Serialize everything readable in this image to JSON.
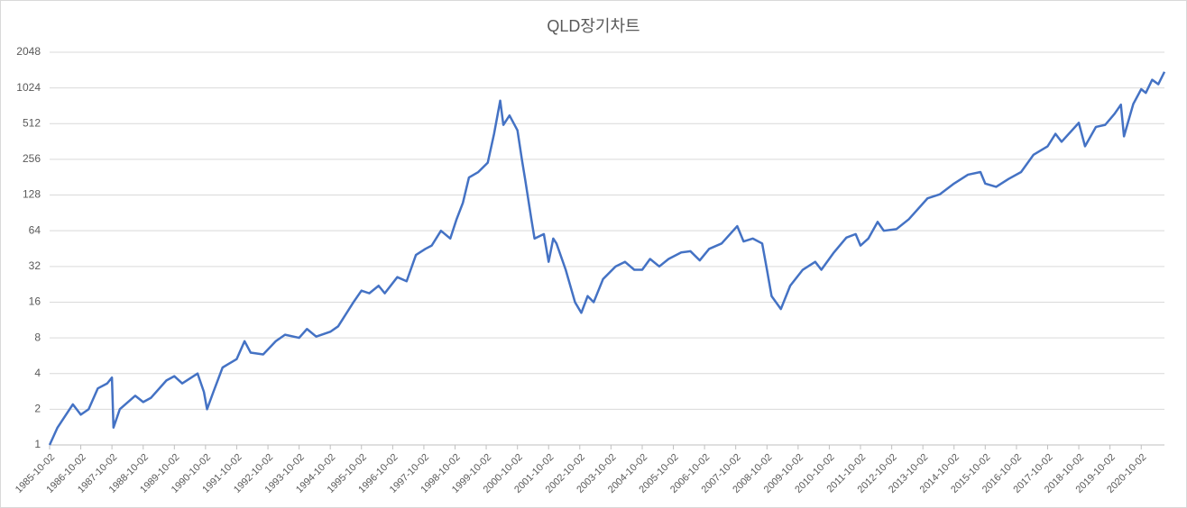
{
  "chart_data": {
    "type": "line",
    "title": "QLD장기차트",
    "log_scale": true,
    "grid": true,
    "ylim": [
      1,
      2048
    ],
    "yticks": [
      1,
      2,
      4,
      8,
      16,
      32,
      64,
      128,
      256,
      512,
      1024,
      2048
    ],
    "xlim": [
      "1985-10-02",
      "2021-07-01"
    ],
    "xticks": [
      "1985-10-02",
      "1986-10-02",
      "1987-10-02",
      "1988-10-02",
      "1989-10-02",
      "1990-10-02",
      "1991-10-02",
      "1992-10-02",
      "1993-10-02",
      "1994-10-02",
      "1995-10-02",
      "1996-10-02",
      "1997-10-02",
      "1998-10-02",
      "1999-10-02",
      "2000-10-02",
      "2001-10-02",
      "2002-10-02",
      "2003-10-02",
      "2004-10-02",
      "2005-10-02",
      "2006-10-02",
      "2007-10-02",
      "2008-10-02",
      "2009-10-02",
      "2010-10-02",
      "2011-10-02",
      "2012-10-02",
      "2013-10-02",
      "2014-10-02",
      "2015-10-02",
      "2016-10-02",
      "2017-10-02",
      "2018-10-02",
      "2019-10-02",
      "2020-10-02"
    ],
    "x": [
      "1985-10-02",
      "1986-01-02",
      "1986-07-01",
      "1986-10-02",
      "1987-01-02",
      "1987-04-20",
      "1987-08-07",
      "1987-10-02",
      "1987-10-20",
      "1988-01-02",
      "1988-07-01",
      "1988-10-02",
      "1989-01-02",
      "1989-07-01",
      "1989-10-02",
      "1990-01-02",
      "1990-07-01",
      "1990-09-13",
      "1990-10-20",
      "1991-01-02",
      "1991-04-20",
      "1991-10-02",
      "1992-01-02",
      "1992-03-14",
      "1992-08-07",
      "1993-01-02",
      "1993-04-20",
      "1993-10-02",
      "1994-01-02",
      "1994-04-20",
      "1994-10-02",
      "1995-01-02",
      "1995-07-01",
      "1995-10-02",
      "1996-01-02",
      "1996-04-20",
      "1996-07-01",
      "1996-11-25",
      "1997-03-14",
      "1997-07-01",
      "1997-10-20",
      "1998-01-02",
      "1998-04-20",
      "1998-08-07",
      "1998-10-20",
      "1999-01-02",
      "1999-03-14",
      "1999-07-01",
      "1999-10-20",
      "2000-01-02",
      "2000-03-14",
      "2000-04-20",
      "2000-07-01",
      "2000-10-02",
      "2000-11-25",
      "2001-01-02",
      "2001-03-14",
      "2001-04-20",
      "2001-08-07",
      "2001-10-02",
      "2001-11-25",
      "2002-01-02",
      "2002-04-20",
      "2002-08-07",
      "2002-10-20",
      "2003-01-02",
      "2003-03-14",
      "2003-07-01",
      "2003-11-25",
      "2004-03-14",
      "2004-07-01",
      "2004-10-02",
      "2005-01-02",
      "2005-04-20",
      "2005-08-07",
      "2006-01-02",
      "2006-04-20",
      "2006-08-07",
      "2006-11-25",
      "2007-04-20",
      "2007-10-20",
      "2008-01-02",
      "2008-04-20",
      "2008-08-07",
      "2008-10-02",
      "2008-11-25",
      "2009-03-14",
      "2009-07-01",
      "2009-11-25",
      "2010-04-20",
      "2010-07-01",
      "2010-11-25",
      "2011-04-20",
      "2011-08-07",
      "2011-10-02",
      "2012-01-02",
      "2012-04-20",
      "2012-07-01",
      "2012-11-25",
      "2013-04-20",
      "2013-11-25",
      "2014-04-20",
      "2014-10-02",
      "2015-03-14",
      "2015-08-07",
      "2015-10-02",
      "2016-02-07",
      "2016-07-01",
      "2016-11-25",
      "2017-04-20",
      "2017-10-02",
      "2018-01-02",
      "2018-03-14",
      "2018-10-02",
      "2018-12-14",
      "2019-04-20",
      "2019-08-07",
      "2019-11-25",
      "2020-02-07",
      "2020-03-14",
      "2020-07-01",
      "2020-10-02",
      "2020-11-25",
      "2021-02-07",
      "2021-04-20",
      "2021-07-01"
    ],
    "series": [
      {
        "color": "#4472c4",
        "values": [
          1,
          1.4,
          2.2,
          1.8,
          2.0,
          3.0,
          3.3,
          3.7,
          1.4,
          2.0,
          2.6,
          2.3,
          2.5,
          3.5,
          3.8,
          3.3,
          4.0,
          2.8,
          2.0,
          2.8,
          4.5,
          5.3,
          7.5,
          6.0,
          5.8,
          7.5,
          8.5,
          8.0,
          9.5,
          8.2,
          9.0,
          10,
          16,
          20,
          19,
          22,
          19,
          26,
          24,
          40,
          45,
          48,
          64,
          55,
          80,
          110,
          180,
          200,
          240,
          420,
          800,
          500,
          600,
          450,
          250,
          170,
          80,
          55,
          60,
          35,
          55,
          50,
          30,
          16,
          13,
          18,
          16,
          25,
          32,
          35,
          30,
          30,
          37,
          32,
          37,
          42,
          43,
          36,
          45,
          50,
          70,
          52,
          55,
          50,
          30,
          18,
          14,
          22,
          30,
          35,
          30,
          42,
          56,
          60,
          48,
          55,
          76,
          64,
          66,
          80,
          120,
          130,
          160,
          190,
          200,
          160,
          150,
          175,
          200,
          280,
          330,
          420,
          360,
          520,
          330,
          480,
          500,
          620,
          740,
          400,
          750,
          1000,
          930,
          1200,
          1100,
          1400
        ]
      }
    ]
  }
}
